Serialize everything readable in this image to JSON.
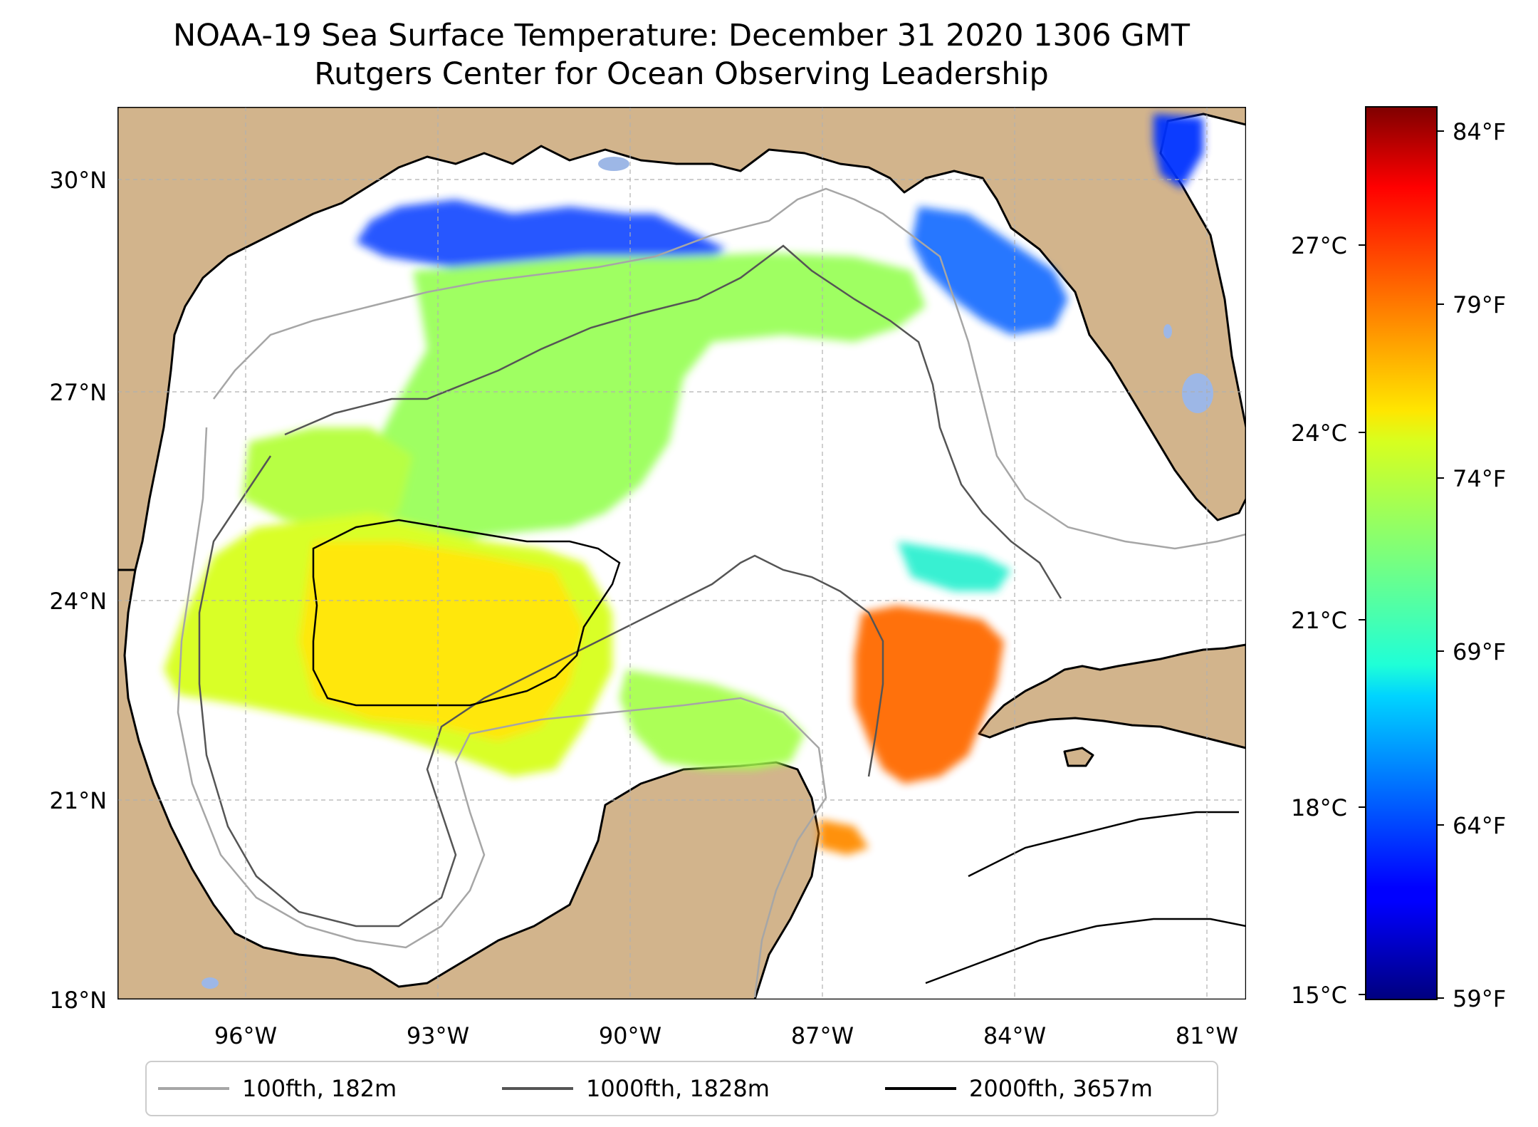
{
  "title": {
    "line1": "NOAA-19 Sea Surface Temperature: December 31 2020 1306 GMT",
    "line2": "Rutgers Center for Ocean Observing Leadership"
  },
  "map": {
    "lon_range": [
      -98,
      -80.4
    ],
    "lat_range": [
      18,
      31
    ],
    "colors": {
      "land": "#d2b48c",
      "ocean": "#ffffff",
      "lakes": "#9db7e6",
      "grid": "#b0b0b0"
    },
    "lat_ticks": [
      {
        "value": 30,
        "label": "30°N"
      },
      {
        "value": 27,
        "label": "27°N"
      },
      {
        "value": 24,
        "label": "24°N"
      },
      {
        "value": 21,
        "label": "21°N"
      },
      {
        "value": 18,
        "label": "18°N"
      }
    ],
    "lon_ticks": [
      {
        "value": -96,
        "label": "96°W"
      },
      {
        "value": -93,
        "label": "93°W"
      },
      {
        "value": -90,
        "label": "90°W"
      },
      {
        "value": -87,
        "label": "87°W"
      },
      {
        "value": -84,
        "label": "84°W"
      },
      {
        "value": -81,
        "label": "81°W"
      }
    ]
  },
  "colorbar": {
    "colormap": "jet",
    "range_c": [
      15,
      29
    ],
    "celsius_ticks": [
      {
        "value": 27,
        "label": "27°C"
      },
      {
        "value": 24,
        "label": "24°C"
      },
      {
        "value": 21,
        "label": "21°C"
      },
      {
        "value": 18,
        "label": "18°C"
      },
      {
        "value": 15,
        "label": "15°C"
      }
    ],
    "fahrenheit_ticks": [
      {
        "value": 84,
        "label": "84°F"
      },
      {
        "value": 79,
        "label": "79°F"
      },
      {
        "value": 74,
        "label": "74°F"
      },
      {
        "value": 69,
        "label": "69°F"
      },
      {
        "value": 64,
        "label": "64°F"
      },
      {
        "value": 59,
        "label": "59°F"
      }
    ]
  },
  "legend": {
    "items": [
      {
        "label": "100fth, 182m",
        "color": "#a6a6a6"
      },
      {
        "label": "1000fth, 1828m",
        "color": "#555555"
      },
      {
        "label": "2000fth, 3657m",
        "color": "#000000"
      }
    ]
  }
}
